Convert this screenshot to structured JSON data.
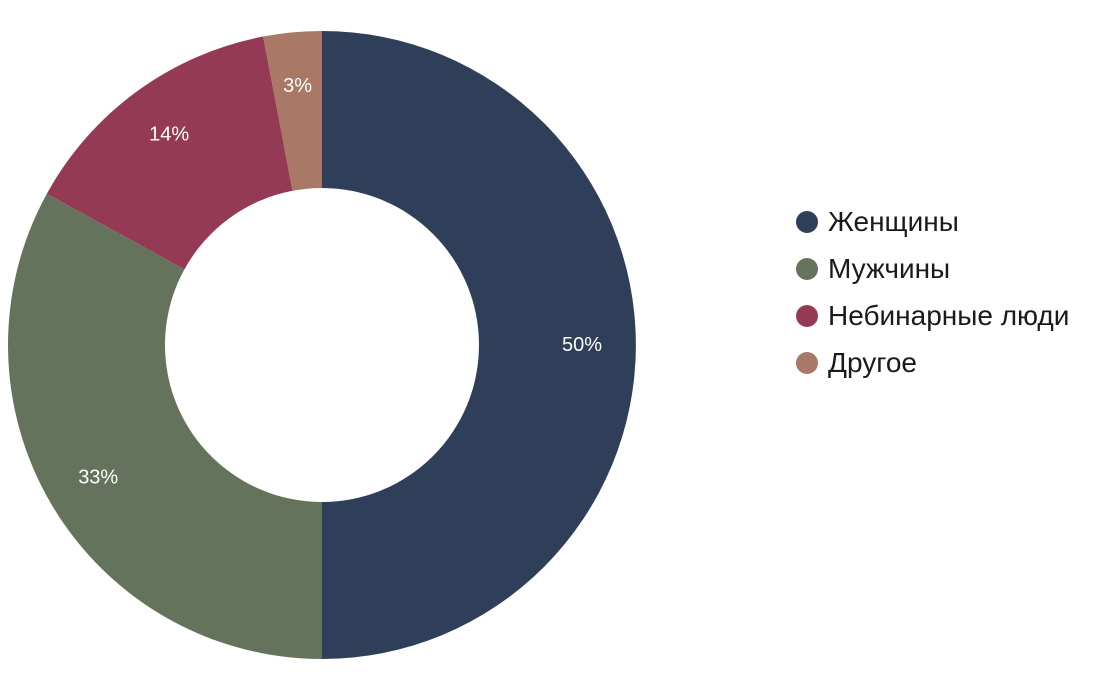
{
  "chart_data": {
    "type": "pie",
    "donut": true,
    "categories": [
      "Женщины",
      "Мужчины",
      "Небинарные люди",
      "Другое"
    ],
    "values": [
      50,
      33,
      14,
      3
    ],
    "value_labels": [
      "50%",
      "33%",
      "14%",
      "3%"
    ],
    "colors": [
      "#2f3f59",
      "#66735c",
      "#953a55",
      "#a97866"
    ],
    "legend_position": "right"
  }
}
